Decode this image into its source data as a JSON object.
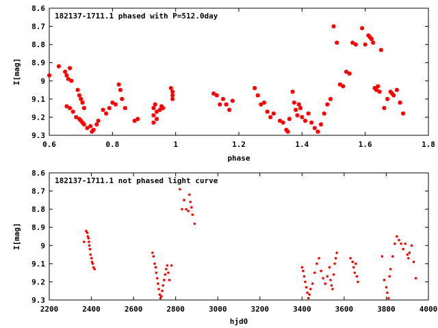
{
  "chart_data": [
    {
      "type": "scatter",
      "title": "182137-1711.1 phased with P=512.0day",
      "xlabel": "phase",
      "ylabel": "I[mag]",
      "xlim": [
        0.6,
        1.8
      ],
      "ylim": [
        8.6,
        9.3
      ],
      "y_inverted": true,
      "x_ticks": [
        "0.6",
        "0.8",
        "1",
        "1.2",
        "1.4",
        "1.6",
        "1.8"
      ],
      "y_ticks": [
        "8.6",
        "8.7",
        "8.8",
        "8.9",
        "9",
        "9.1",
        "9.2",
        "9.3"
      ],
      "marker_color": "#ff0000",
      "x": [
        0.6,
        0.63,
        0.65,
        0.655,
        0.66,
        0.665,
        0.67,
        0.655,
        0.665,
        0.675,
        0.685,
        0.69,
        0.695,
        0.7,
        0.705,
        0.71,
        0.695,
        0.7,
        0.705,
        0.71,
        0.72,
        0.73,
        0.735,
        0.74,
        0.75,
        0.755,
        0.77,
        0.78,
        0.79,
        0.8,
        0.81,
        0.82,
        0.825,
        0.83,
        0.84,
        0.87,
        0.88,
        0.93,
        0.93,
        0.93,
        0.935,
        0.94,
        0.94,
        0.95,
        0.955,
        0.96,
        0.985,
        0.99,
        0.99,
        0.99,
        1.12,
        1.13,
        1.14,
        1.15,
        1.16,
        1.17,
        1.18,
        1.25,
        1.26,
        1.27,
        1.28,
        1.29,
        1.3,
        1.31,
        1.33,
        1.34,
        1.35,
        1.355,
        1.36,
        1.37,
        1.375,
        1.38,
        1.385,
        1.39,
        1.395,
        1.4,
        1.41,
        1.42,
        1.43,
        1.44,
        1.45,
        1.46,
        1.47,
        1.48,
        1.49,
        1.5,
        1.51,
        1.52,
        1.53,
        1.54,
        1.55,
        1.56,
        1.57,
        1.59,
        1.6,
        1.61,
        1.615,
        1.62,
        1.625,
        1.63,
        1.635,
        1.64,
        1.645,
        1.65,
        1.66,
        1.67,
        1.68,
        1.685,
        1.69,
        1.7,
        1.71,
        1.72
      ],
      "y": [
        8.97,
        8.92,
        8.95,
        8.97,
        8.99,
        8.93,
        9.0,
        9.14,
        9.15,
        9.17,
        9.2,
        9.05,
        9.08,
        9.1,
        9.12,
        9.15,
        9.21,
        9.22,
        9.23,
        9.24,
        9.26,
        9.25,
        9.28,
        9.27,
        9.24,
        9.22,
        9.16,
        9.18,
        9.15,
        9.12,
        9.13,
        9.02,
        9.05,
        9.1,
        9.15,
        9.22,
        9.21,
        9.15,
        9.19,
        9.23,
        9.13,
        9.17,
        9.21,
        9.16,
        9.14,
        9.15,
        9.04,
        9.06,
        9.08,
        9.1,
        9.07,
        9.08,
        9.13,
        9.1,
        9.13,
        9.16,
        9.11,
        9.04,
        9.08,
        9.13,
        9.12,
        9.17,
        9.2,
        9.18,
        9.22,
        9.23,
        9.27,
        9.28,
        9.21,
        9.06,
        9.12,
        9.16,
        9.19,
        9.13,
        9.15,
        9.2,
        9.22,
        9.18,
        9.23,
        9.26,
        9.28,
        9.24,
        9.18,
        9.13,
        9.1,
        8.7,
        8.79,
        9.02,
        9.03,
        8.95,
        8.96,
        8.79,
        8.8,
        8.71,
        8.8,
        8.75,
        8.76,
        8.77,
        8.79,
        9.04,
        9.05,
        9.03,
        9.06,
        8.83,
        9.15,
        9.1,
        9.06,
        9.07,
        9.08,
        9.05,
        9.12,
        9.18
      ]
    },
    {
      "type": "scatter",
      "title": "182137-1711.1 not phased light curve",
      "xlabel": "hjd0",
      "ylabel": "I[mag]",
      "xlim": [
        2200,
        4000
      ],
      "ylim": [
        8.6,
        9.3
      ],
      "y_inverted": true,
      "x_ticks": [
        "2200",
        "2400",
        "2600",
        "2800",
        "3000",
        "3200",
        "3400",
        "3600",
        "3800",
        "4000"
      ],
      "y_ticks": [
        "8.6",
        "8.7",
        "8.8",
        "8.9",
        "9",
        "9.1",
        "9.2",
        "9.3"
      ],
      "marker_color": "#ff0000",
      "x": [
        2365,
        2375,
        2380,
        2383,
        2386,
        2388,
        2390,
        2393,
        2396,
        2400,
        2403,
        2406,
        2410,
        2415,
        2690,
        2695,
        2700,
        2705,
        2708,
        2712,
        2716,
        2720,
        2724,
        2728,
        2732,
        2736,
        2740,
        2745,
        2750,
        2755,
        2760,
        2765,
        2770,
        2780,
        2820,
        2830,
        2840,
        2850,
        2860,
        2865,
        2870,
        2875,
        2880,
        2890,
        3400,
        3405,
        3410,
        3415,
        3420,
        3425,
        3430,
        3435,
        3440,
        3450,
        3460,
        3470,
        3480,
        3490,
        3500,
        3510,
        3520,
        3530,
        3535,
        3540,
        3545,
        3550,
        3555,
        3560,
        3565,
        3630,
        3640,
        3645,
        3650,
        3655,
        3660,
        3665,
        3780,
        3790,
        3800,
        3805,
        3810,
        3815,
        3820,
        3830,
        3840,
        3850,
        3860,
        3870,
        3880,
        3890,
        3900,
        3905,
        3910,
        3920,
        3930,
        3940
      ],
      "y": [
        8.98,
        8.92,
        8.93,
        8.95,
        8.96,
        8.98,
        9.0,
        9.02,
        9.05,
        9.07,
        9.09,
        9.1,
        9.12,
        9.13,
        9.04,
        9.06,
        9.1,
        9.12,
        9.15,
        9.18,
        9.21,
        9.24,
        9.27,
        9.29,
        9.28,
        9.25,
        9.22,
        9.19,
        9.16,
        9.13,
        9.11,
        9.15,
        9.19,
        9.11,
        8.69,
        8.8,
        8.75,
        8.8,
        8.81,
        8.72,
        8.76,
        8.79,
        8.83,
        8.88,
        9.12,
        9.14,
        9.17,
        9.2,
        9.23,
        9.26,
        9.29,
        9.27,
        9.24,
        9.21,
        9.15,
        9.1,
        9.07,
        9.14,
        9.18,
        9.21,
        9.17,
        9.12,
        9.19,
        9.22,
        9.24,
        9.16,
        9.1,
        9.07,
        9.04,
        9.07,
        9.09,
        9.12,
        9.15,
        9.1,
        9.17,
        9.2,
        9.06,
        9.19,
        9.23,
        9.26,
        9.29,
        9.17,
        9.13,
        9.06,
        8.99,
        8.95,
        8.97,
        8.99,
        9.02,
        8.99,
        9.05,
        9.07,
        9.04,
        9.0,
        9.09,
        9.18
      ]
    }
  ]
}
